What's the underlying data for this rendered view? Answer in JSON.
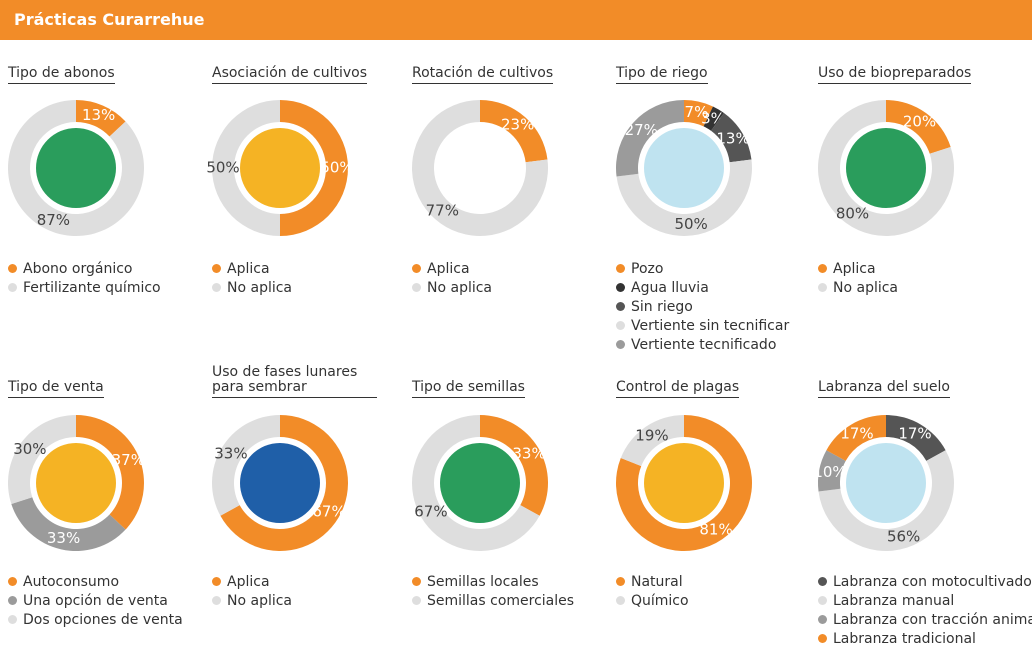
{
  "title": "Prácticas Curarrehue",
  "chart_data": [
    {
      "type": "donut",
      "title": "Tipo de abonos",
      "categories": [
        "Abono orgánico",
        "Fertilizante químico"
      ],
      "values": [
        13,
        87
      ],
      "value_labels": [
        "13%",
        "87%"
      ],
      "colors": [
        "#f28c28",
        "#dedede"
      ]
    },
    {
      "type": "donut",
      "title": "Asociación de cultivos",
      "categories": [
        "Aplica",
        "No aplica"
      ],
      "values": [
        50,
        50
      ],
      "value_labels": [
        "50%",
        "50%"
      ],
      "colors": [
        "#f28c28",
        "#dedede"
      ]
    },
    {
      "type": "donut",
      "title": "Rotación de cultivos",
      "categories": [
        "Aplica",
        "No aplica"
      ],
      "values": [
        23,
        77
      ],
      "value_labels": [
        "23%",
        "77%"
      ],
      "colors": [
        "#f28c28",
        "#dedede"
      ]
    },
    {
      "type": "donut",
      "title": "Tipo de riego",
      "categories": [
        "Pozo",
        "Agua lluvia",
        "Sin riego",
        "Vertiente sin tecnificar",
        "Vertiente tecnificado"
      ],
      "values": [
        7,
        3,
        13,
        50,
        27
      ],
      "value_labels": [
        "7%",
        "3%",
        "13%",
        "50%",
        "27%"
      ],
      "colors": [
        "#f28c28",
        "#333333",
        "#555555",
        "#dedede",
        "#9b9b9b"
      ]
    },
    {
      "type": "donut",
      "title": "Uso de biopreparados",
      "categories": [
        "Aplica",
        "No aplica"
      ],
      "values": [
        20,
        80
      ],
      "value_labels": [
        "20%",
        "80%"
      ],
      "colors": [
        "#f28c28",
        "#dedede"
      ]
    },
    {
      "type": "donut",
      "title": "Tipo de venta",
      "categories": [
        "Autoconsumo",
        "Una opción de venta",
        "Dos opciones de venta"
      ],
      "values": [
        37,
        33,
        30
      ],
      "value_labels": [
        "37%",
        "33%",
        "30%"
      ],
      "colors": [
        "#f28c28",
        "#9b9b9b",
        "#dedede"
      ]
    },
    {
      "type": "donut",
      "title": "Uso de fases lunares para sembrar",
      "categories": [
        "Aplica",
        "No aplica"
      ],
      "values": [
        67,
        33
      ],
      "value_labels": [
        "67%",
        "33%"
      ],
      "colors": [
        "#f28c28",
        "#dedede"
      ]
    },
    {
      "type": "donut",
      "title": "Tipo de semillas",
      "categories": [
        "Semillas locales",
        "Semillas comerciales"
      ],
      "values": [
        33,
        67
      ],
      "value_labels": [
        "33%",
        "67%"
      ],
      "colors": [
        "#f28c28",
        "#dedede"
      ]
    },
    {
      "type": "donut",
      "title": "Control de plagas",
      "categories": [
        "Natural",
        "Químico"
      ],
      "values": [
        81,
        19
      ],
      "value_labels": [
        "81%",
        "19%"
      ],
      "colors": [
        "#f28c28",
        "#dedede"
      ]
    },
    {
      "type": "donut",
      "title": "Labranza del suelo",
      "categories": [
        "Labranza con motocultivador",
        "Labranza manual",
        "Labranza con tracción animal",
        "Labranza tradicional"
      ],
      "values": [
        17,
        56,
        10,
        17
      ],
      "value_labels": [
        "17%",
        "56%",
        "10%",
        "17%"
      ],
      "colors": [
        "#555555",
        "#dedede",
        "#9b9b9b",
        "#f28c28"
      ]
    }
  ]
}
